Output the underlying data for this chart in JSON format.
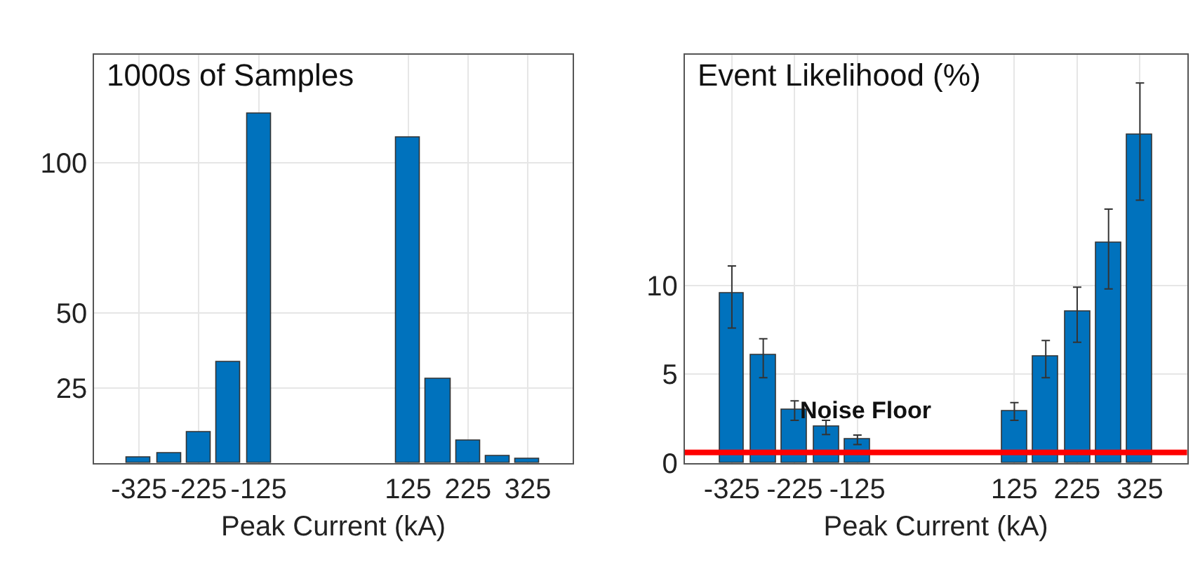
{
  "chart_data": [
    {
      "type": "bar",
      "title": "1000s of Samples",
      "xlabel": "Peak Current (kA)",
      "x": [
        -325,
        -275,
        -225,
        -175,
        -125,
        125,
        175,
        225,
        275,
        325
      ],
      "values": [
        1.8,
        3.2,
        10.5,
        33.8,
        116.2,
        108.3,
        28.1,
        7.3,
        2.3,
        1.4
      ],
      "color": "#0072bd",
      "xlim": [
        -400,
        400
      ],
      "xticks": [
        -325,
        -225,
        -125,
        125,
        225,
        325
      ],
      "ylim": [
        0,
        136
      ],
      "yticks": [
        25,
        50,
        100
      ],
      "grid": true
    },
    {
      "type": "bar",
      "title": "Event Likelihood (%)",
      "xlabel": "Peak Current (kA)",
      "x": [
        -325,
        -275,
        -225,
        -175,
        -125,
        125,
        175,
        225,
        275,
        325
      ],
      "values": [
        9.6,
        6.1,
        3.0,
        2.05,
        1.34,
        2.9,
        6.0,
        8.5,
        12.4,
        18.5
      ],
      "errors": [
        [
          7.6,
          11.1
        ],
        [
          4.8,
          7.0
        ],
        [
          2.4,
          3.5
        ],
        [
          1.6,
          2.4
        ],
        [
          1.04,
          1.57
        ],
        [
          2.4,
          3.4
        ],
        [
          4.8,
          6.9
        ],
        [
          6.8,
          9.9
        ],
        [
          9.8,
          14.3
        ],
        [
          14.8,
          21.4
        ]
      ],
      "color": "#0072bd",
      "xlim": [
        -400,
        400
      ],
      "xticks": [
        -325,
        -225,
        -125,
        125,
        225,
        325
      ],
      "ylim": [
        0,
        23
      ],
      "yticks": [
        0,
        5,
        10
      ],
      "grid": true,
      "ref_lines": [
        {
          "axis": "y",
          "value": 0.6,
          "label": "Noise Floor",
          "color": "#ff0000"
        }
      ]
    }
  ]
}
